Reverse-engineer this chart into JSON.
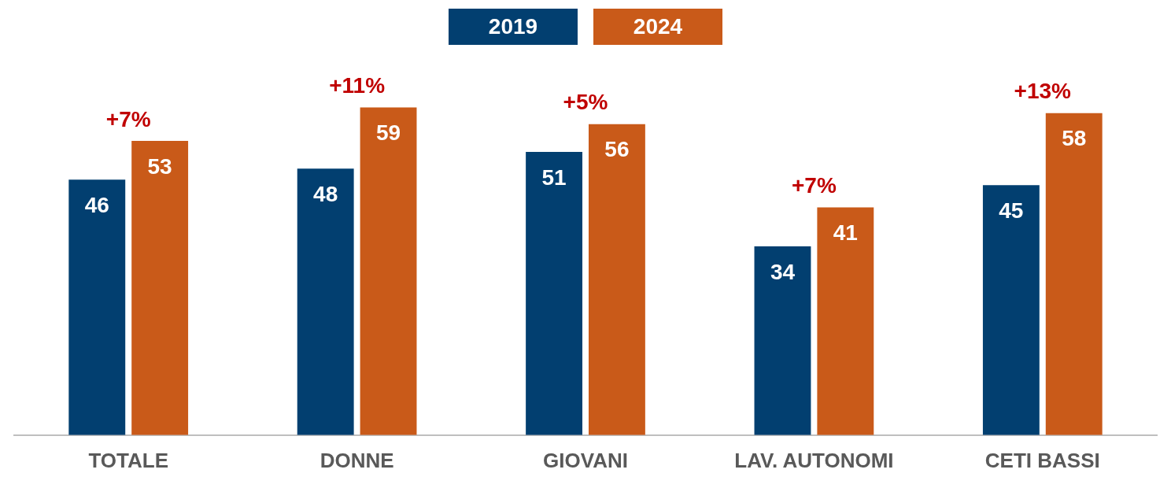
{
  "chart_data": {
    "type": "bar",
    "categories": [
      "TOTALE",
      "DONNE",
      "GIOVANI",
      "LAV. AUTONOMI",
      "CETI BASSI"
    ],
    "series": [
      {
        "name": "2019",
        "color": "#023f70",
        "values": [
          46,
          48,
          51,
          34,
          45
        ]
      },
      {
        "name": "2024",
        "color": "#c95a19",
        "values": [
          53,
          59,
          56,
          41,
          58
        ]
      }
    ],
    "data_labels": true,
    "legend": "top",
    "grid": false,
    "annotations": [
      {
        "text": "+7%",
        "x": "TOTALE",
        "y": 53
      },
      {
        "text": "+11%",
        "x": "DONNE",
        "y": 59
      },
      {
        "text": "+5%",
        "x": "GIOVANI",
        "y": 56
      },
      {
        "text": "+7%",
        "x": "LAV. AUTONOMI",
        "y": 41
      },
      {
        "text": "+13%",
        "x": "CETI BASSI",
        "y": 58
      }
    ]
  }
}
